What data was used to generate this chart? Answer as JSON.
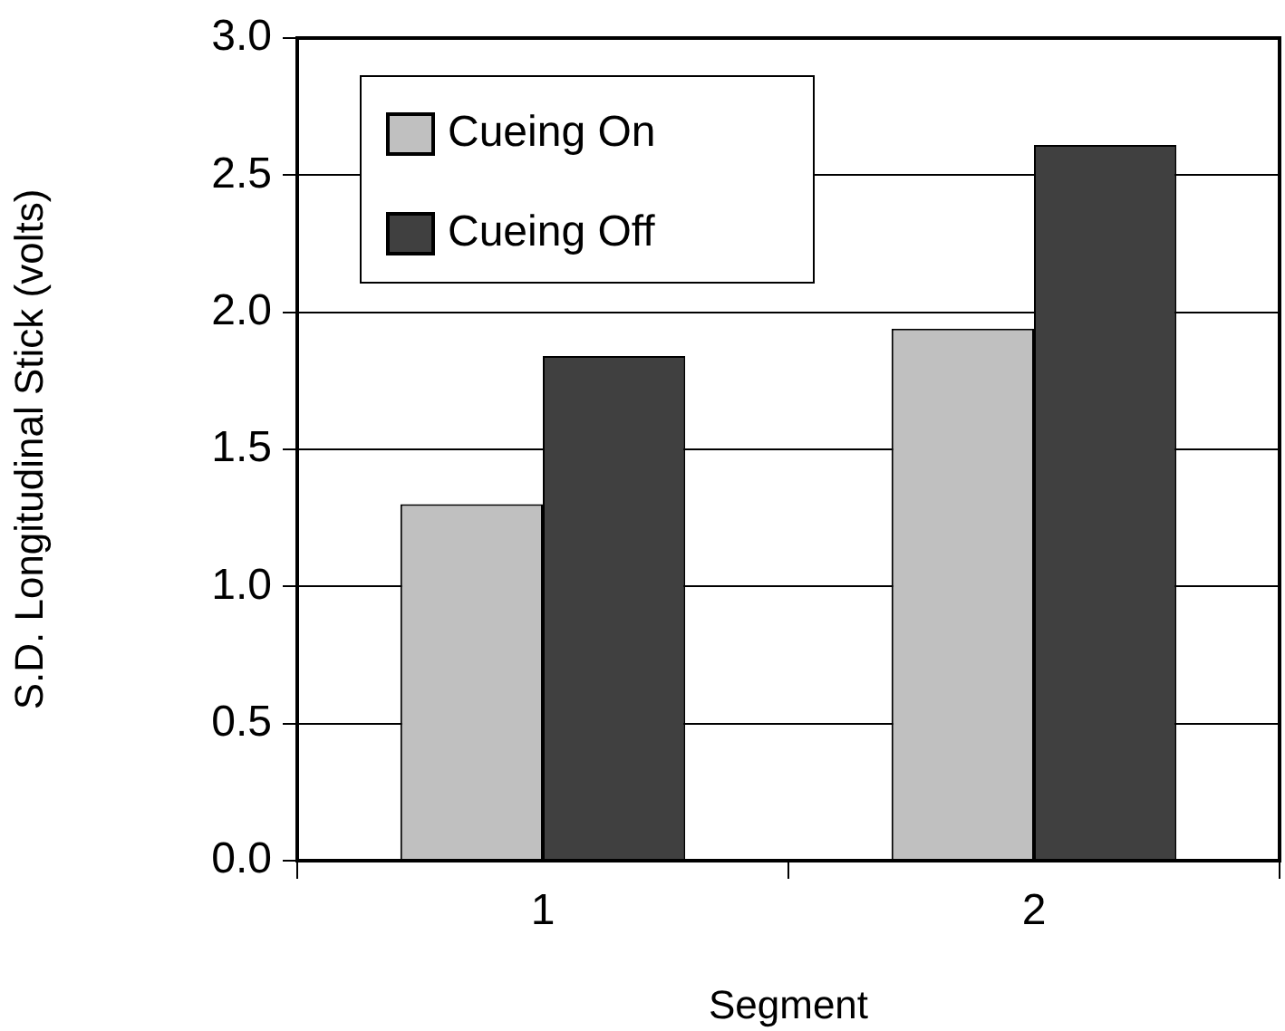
{
  "chart_data": {
    "type": "bar",
    "xlabel": "Segment",
    "ylabel": "S.D. Longitudinal Stick (volts)",
    "categories": [
      "1",
      "2"
    ],
    "series": [
      {
        "name": "Cueing On",
        "color": "#c0c0c0",
        "values": [
          1.3,
          1.94
        ]
      },
      {
        "name": "Cueing Off",
        "color": "#404040",
        "values": [
          1.84,
          2.61
        ]
      }
    ],
    "ylim": [
      0,
      3
    ],
    "yticks": [
      {
        "value": 0,
        "label": "0.0"
      },
      {
        "value": 0.5,
        "label": "0.5"
      },
      {
        "value": 1,
        "label": "1.0"
      },
      {
        "value": 1.5,
        "label": "1.5"
      },
      {
        "value": 2,
        "label": "2.0"
      },
      {
        "value": 2.5,
        "label": "2.5"
      },
      {
        "value": 3,
        "label": "3.0"
      }
    ],
    "grid": "y",
    "legend": "top left"
  }
}
